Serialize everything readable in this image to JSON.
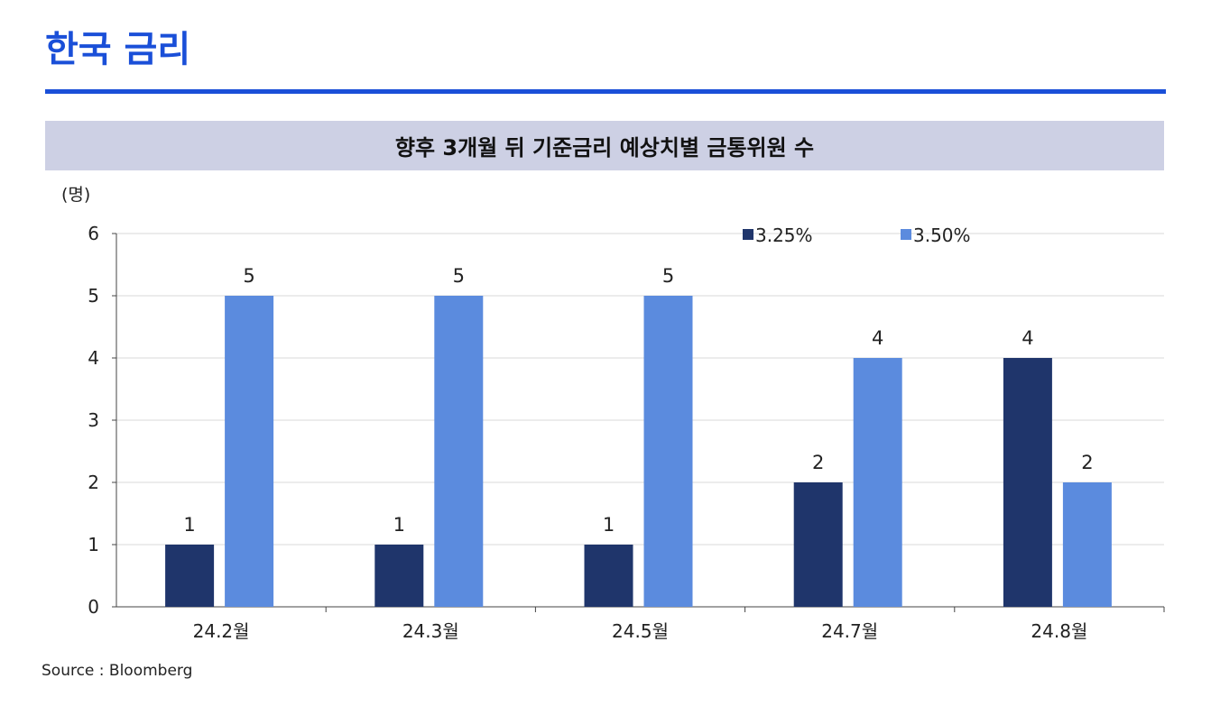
{
  "header": {
    "title": "한국 금리"
  },
  "chart_data": {
    "type": "bar",
    "title": "향후 3개월 뒤 기준금리 예상치별 금통위원 수",
    "ylabel": "(명)",
    "categories": [
      "24.2월",
      "24.3월",
      "24.5월",
      "24.7월",
      "24.8월"
    ],
    "series": [
      {
        "name": "3.25%",
        "values": [
          1,
          1,
          1,
          2,
          4
        ],
        "color": "#1f356b"
      },
      {
        "name": "3.50%",
        "values": [
          5,
          5,
          5,
          4,
          2
        ],
        "color": "#5b8bde"
      }
    ],
    "ylim": [
      0,
      6
    ],
    "yticks": [
      0,
      1,
      2,
      3,
      4,
      5,
      6
    ],
    "grid": true,
    "legend": "top-right"
  },
  "footer": {
    "source": "Source : Bloomberg"
  }
}
